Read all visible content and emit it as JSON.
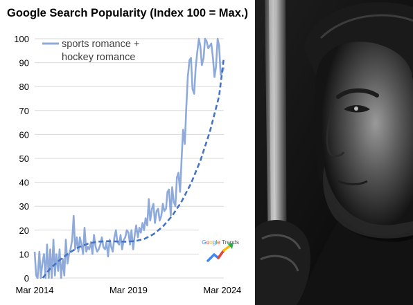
{
  "chart_data": {
    "type": "line",
    "title": "Google Search Popularity (Index 100 = Max.)",
    "xlabel": "",
    "ylabel": "",
    "ylim": [
      0,
      100
    ],
    "yticks": [
      "0",
      "10",
      "20",
      "30",
      "40",
      "50",
      "60",
      "70",
      "80",
      "90",
      "100"
    ],
    "xticks": [
      "Mar 2014",
      "Mar 2019",
      "Mar 2024"
    ],
    "grid": true,
    "legend_position": "top-left",
    "series": [
      {
        "name": "sports romance + hockey romance",
        "legend_lines": [
          "sports romance +",
          "hockey romance"
        ],
        "color": "#8eaadb",
        "style": "solid",
        "x": [
          2014.17,
          2014.25,
          2014.33,
          2014.42,
          2014.5,
          2014.58,
          2014.67,
          2014.75,
          2014.83,
          2014.92,
          2015.0,
          2015.08,
          2015.17,
          2015.25,
          2015.33,
          2015.42,
          2015.5,
          2015.58,
          2015.67,
          2015.75,
          2015.83,
          2015.92,
          2016.0,
          2016.08,
          2016.17,
          2016.25,
          2016.33,
          2016.42,
          2016.5,
          2016.58,
          2016.67,
          2016.75,
          2016.83,
          2016.92,
          2017.0,
          2017.08,
          2017.17,
          2017.25,
          2017.33,
          2017.42,
          2017.5,
          2017.58,
          2017.67,
          2017.75,
          2017.83,
          2017.92,
          2018.0,
          2018.08,
          2018.17,
          2018.25,
          2018.33,
          2018.42,
          2018.5,
          2018.58,
          2018.67,
          2018.75,
          2018.83,
          2018.92,
          2019.0,
          2019.08,
          2019.17,
          2019.25,
          2019.33,
          2019.42,
          2019.5,
          2019.58,
          2019.67,
          2019.75,
          2019.83,
          2019.92,
          2020.0,
          2020.08,
          2020.17,
          2020.25,
          2020.33,
          2020.42,
          2020.5,
          2020.58,
          2020.67,
          2020.75,
          2020.83,
          2020.92,
          2021.0,
          2021.08,
          2021.17,
          2021.25,
          2021.33,
          2021.42,
          2021.5,
          2021.58,
          2021.67,
          2021.75,
          2021.83,
          2021.92,
          2022.0,
          2022.08,
          2022.17,
          2022.25,
          2022.33,
          2022.42,
          2022.5,
          2022.58,
          2022.67,
          2022.75,
          2022.83,
          2022.92,
          2023.0,
          2023.08,
          2023.17,
          2023.25,
          2023.33,
          2023.42,
          2023.5,
          2023.58,
          2023.67,
          2023.75,
          2023.83,
          2023.92,
          2024.0,
          2024.08,
          2024.17,
          2024.25
        ],
        "values": [
          11,
          1,
          0,
          11,
          0,
          6,
          10,
          0,
          14,
          0,
          12,
          0,
          16,
          1,
          10,
          3,
          12,
          0,
          8,
          1,
          16,
          6,
          10,
          12,
          16,
          26,
          12,
          17,
          11,
          17,
          14,
          10,
          21,
          11,
          13,
          12,
          15,
          10,
          18,
          13,
          11,
          12,
          14,
          17,
          13,
          12,
          15,
          9,
          16,
          13,
          11,
          17,
          20,
          15,
          14,
          18,
          12,
          16,
          17,
          20,
          19,
          14,
          20,
          12,
          18,
          22,
          17,
          21,
          19,
          23,
          20,
          25,
          22,
          33,
          24,
          29,
          31,
          23,
          28,
          29,
          24,
          26,
          31,
          28,
          29,
          36,
          37,
          26,
          38,
          32,
          30,
          42,
          44,
          36,
          50,
          62,
          56,
          71,
          84,
          91,
          92,
          79,
          77,
          88,
          94,
          100,
          97,
          89,
          92,
          100,
          99,
          96,
          97,
          98,
          92,
          84,
          88,
          100,
          97,
          85,
          86,
          88
        ],
        "trend": {
          "style": "dashed",
          "color": "#4472c4",
          "x": [
            2014.6,
            2015.0,
            2015.5,
            2016.0,
            2016.5,
            2017.0,
            2017.5,
            2018.0,
            2018.5,
            2019.0,
            2019.5,
            2020.0,
            2020.5,
            2021.0,
            2021.5,
            2022.0,
            2022.5,
            2023.0,
            2023.5,
            2024.0,
            2024.25
          ],
          "values": [
            0,
            4,
            7.5,
            10.5,
            12.8,
            14.3,
            15.2,
            15.4,
            15.3,
            15.2,
            15.4,
            16.3,
            18.3,
            21.5,
            26,
            32,
            39.5,
            49,
            61,
            76,
            92
          ]
        }
      }
    ]
  },
  "logo": {
    "text_parts": [
      "G",
      "o",
      "o",
      "g",
      "l",
      "e",
      " Trends"
    ],
    "name": "google-trends-logo"
  },
  "photo": {
    "icon": "hockey-player-photo"
  }
}
